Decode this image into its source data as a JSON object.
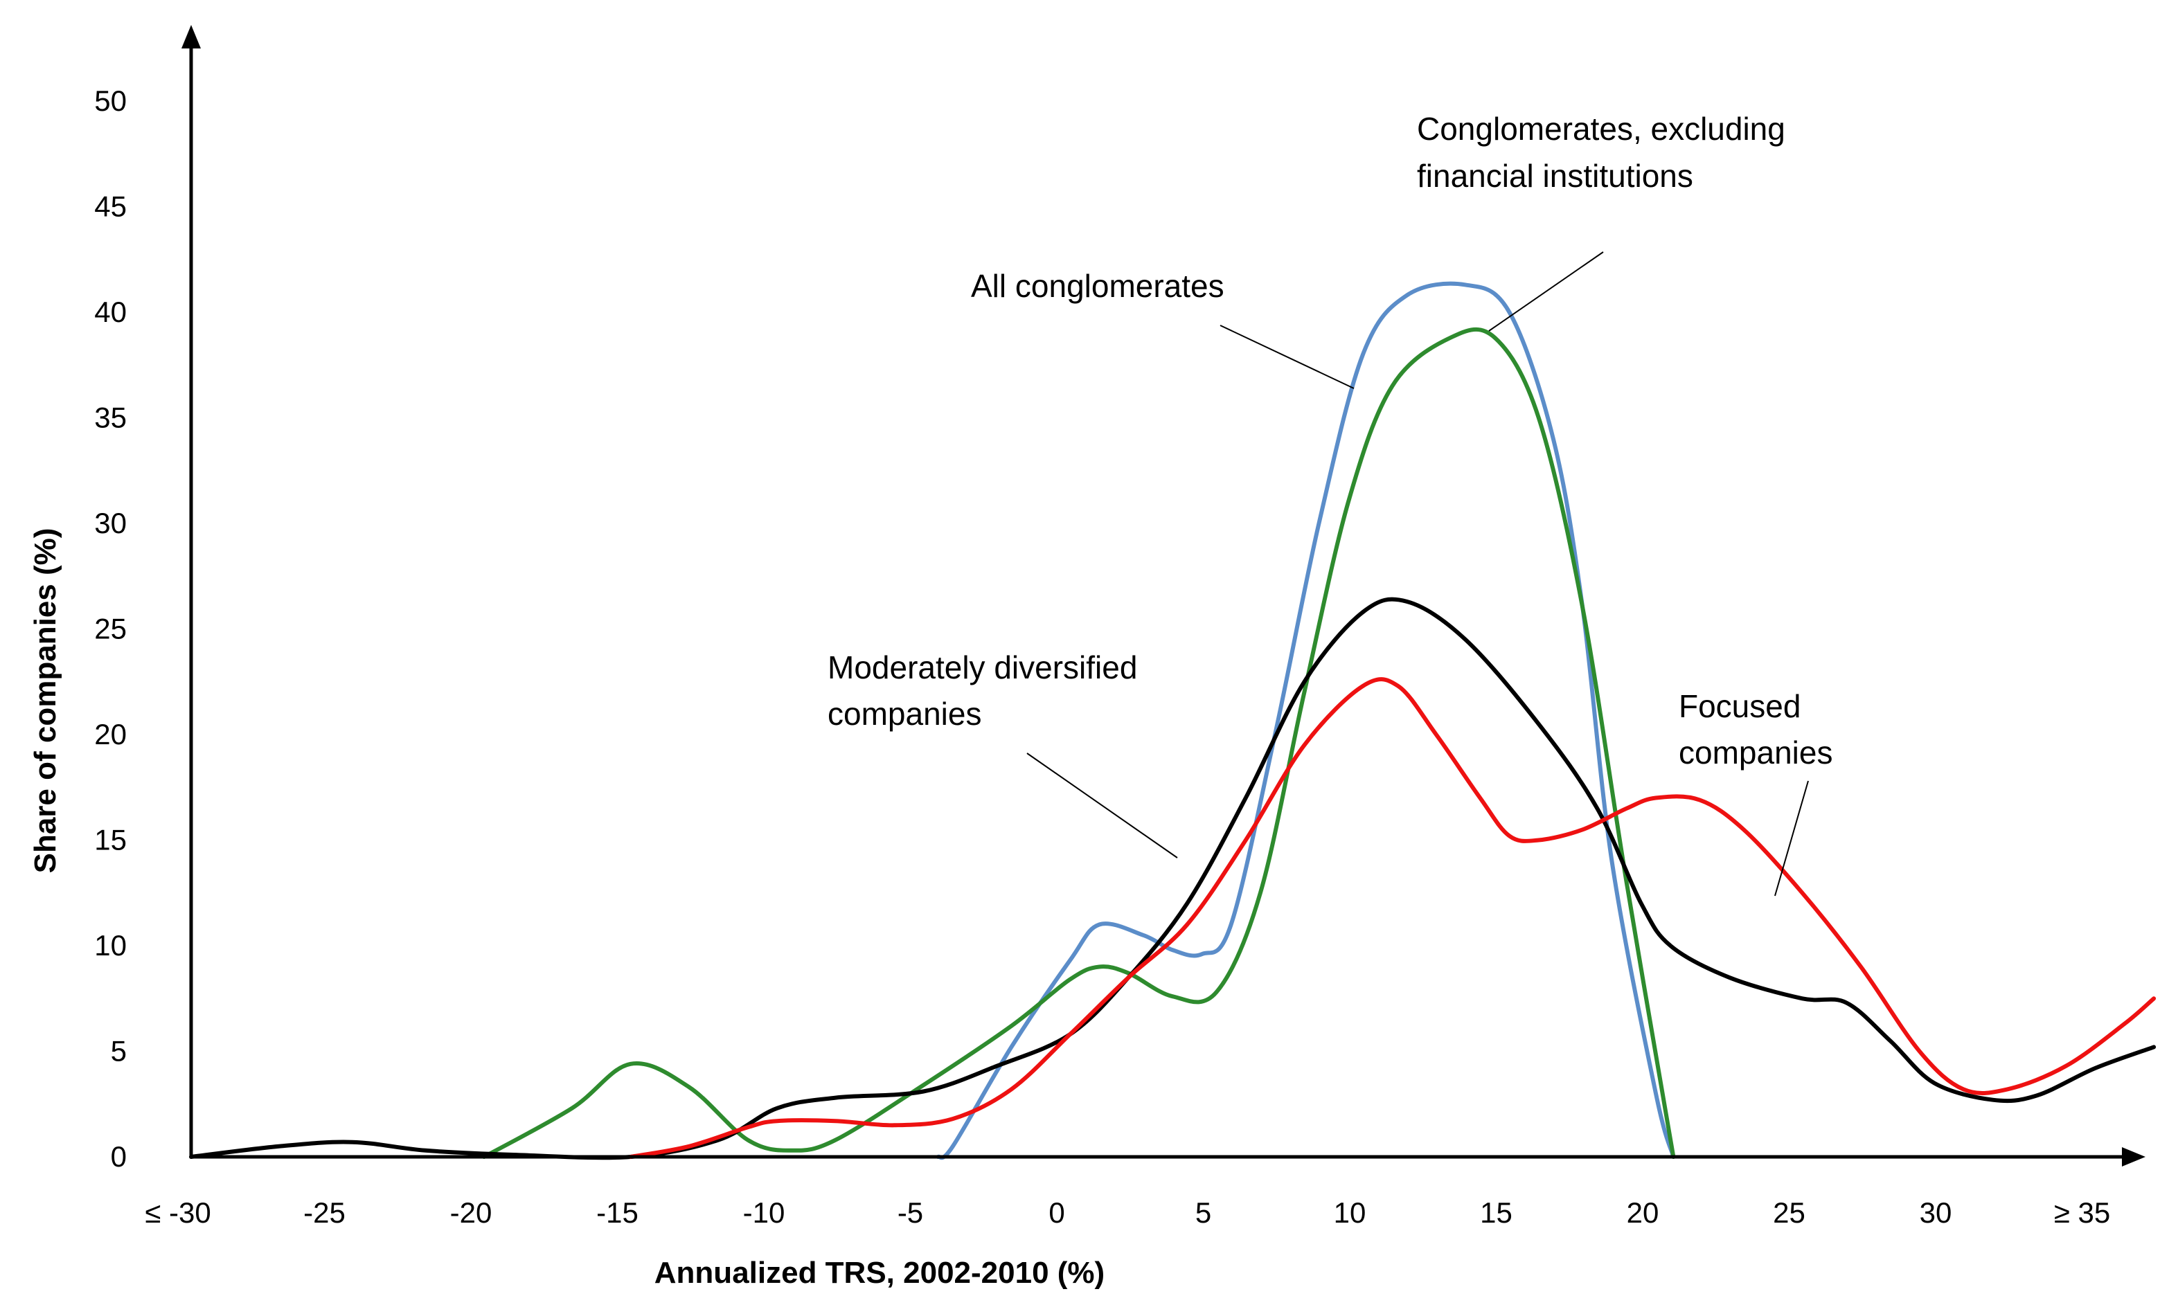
{
  "chart_data": {
    "type": "line",
    "title": "",
    "xlabel": "Annualized TRS, 2002-2010 (%)",
    "ylabel": "Share of companies (%)",
    "xlim": [
      -30,
      37.5
    ],
    "ylim": [
      0,
      50
    ],
    "x_ticks": [
      {
        "value": -30,
        "label": "≤ -30"
      },
      {
        "value": -25,
        "label": "-25"
      },
      {
        "value": -20,
        "label": "-20"
      },
      {
        "value": -15,
        "label": "-15"
      },
      {
        "value": -10,
        "label": "-10"
      },
      {
        "value": -5,
        "label": "-5"
      },
      {
        "value": 0,
        "label": "0"
      },
      {
        "value": 5,
        "label": "5"
      },
      {
        "value": 10,
        "label": "10"
      },
      {
        "value": 15,
        "label": "15"
      },
      {
        "value": 20,
        "label": "20"
      },
      {
        "value": 25,
        "label": "25"
      },
      {
        "value": 30,
        "label": "30"
      },
      {
        "value": 35,
        "label": "≥ 35"
      }
    ],
    "y_ticks": [
      0,
      5,
      10,
      15,
      20,
      25,
      30,
      35,
      40,
      45,
      50
    ],
    "grid": false,
    "legend": "none (series labeled by annotations)",
    "series": [
      {
        "name": "Conglomerates, excluding financial institutions",
        "color": "#5b8dc9",
        "points": [
          [
            -4.5,
            0
          ],
          [
            -4,
            0.5
          ],
          [
            -2,
            5.2
          ],
          [
            0,
            9.3
          ],
          [
            1,
            11
          ],
          [
            2.5,
            10.5
          ],
          [
            3.5,
            9.8
          ],
          [
            4.5,
            9.6
          ],
          [
            5.5,
            11
          ],
          [
            7,
            20
          ],
          [
            8.5,
            30
          ],
          [
            10,
            38
          ],
          [
            11.5,
            40.8
          ],
          [
            13.5,
            41.3
          ],
          [
            15,
            40
          ],
          [
            16.5,
            34
          ],
          [
            17.5,
            26
          ],
          [
            18.5,
            14
          ],
          [
            20,
            3
          ],
          [
            20.6,
            0
          ]
        ]
      },
      {
        "name": "All conglomerates",
        "color": "#2e8b2e",
        "points": [
          [
            -20,
            0
          ],
          [
            -17,
            2.3
          ],
          [
            -15,
            4.4
          ],
          [
            -13,
            3.3
          ],
          [
            -11,
            0.8
          ],
          [
            -9.5,
            0.3
          ],
          [
            -8,
            0.8
          ],
          [
            -5,
            3.4
          ],
          [
            -2,
            6.2
          ],
          [
            0,
            8.4
          ],
          [
            1,
            9
          ],
          [
            2,
            8.7
          ],
          [
            3.5,
            7.6
          ],
          [
            5,
            7.8
          ],
          [
            6.5,
            12.5
          ],
          [
            8,
            22
          ],
          [
            9.5,
            31
          ],
          [
            11,
            36.5
          ],
          [
            13,
            38.8
          ],
          [
            14.5,
            38.8
          ],
          [
            16,
            35
          ],
          [
            17.5,
            26
          ],
          [
            19,
            13
          ],
          [
            20.6,
            0
          ]
        ]
      },
      {
        "name": "Moderately diversified companies",
        "color": "#000000",
        "points": [
          [
            -30,
            0
          ],
          [
            -27,
            0.5
          ],
          [
            -24.5,
            0.7
          ],
          [
            -22,
            0.3
          ],
          [
            -19,
            0.1
          ],
          [
            -15,
            0
          ],
          [
            -12,
            0.8
          ],
          [
            -10,
            2.3
          ],
          [
            -8,
            2.8
          ],
          [
            -5,
            3.1
          ],
          [
            -2.5,
            4.3
          ],
          [
            0,
            5.8
          ],
          [
            2,
            8.5
          ],
          [
            4,
            12
          ],
          [
            6,
            17
          ],
          [
            8,
            22.5
          ],
          [
            10,
            25.8
          ],
          [
            11.5,
            26.3
          ],
          [
            13.5,
            24.5
          ],
          [
            16,
            20.5
          ],
          [
            18,
            16.5
          ],
          [
            19.5,
            12
          ],
          [
            20.5,
            10
          ],
          [
            22.5,
            8.5
          ],
          [
            25,
            7.5
          ],
          [
            26.5,
            7.3
          ],
          [
            28,
            5.5
          ],
          [
            29.5,
            3.5
          ],
          [
            31.5,
            2.7
          ],
          [
            33,
            2.9
          ],
          [
            35,
            4.2
          ],
          [
            37,
            5.2
          ]
        ]
      },
      {
        "name": "Focused companies",
        "color": "#ee1111",
        "points": [
          [
            -15,
            0
          ],
          [
            -13,
            0.5
          ],
          [
            -11,
            1.4
          ],
          [
            -10,
            1.7
          ],
          [
            -8,
            1.7
          ],
          [
            -6,
            1.5
          ],
          [
            -4,
            1.8
          ],
          [
            -2,
            3.2
          ],
          [
            0,
            5.8
          ],
          [
            2,
            8.5
          ],
          [
            4,
            11
          ],
          [
            6,
            15
          ],
          [
            8,
            19.5
          ],
          [
            10,
            22.3
          ],
          [
            11.2,
            22.3
          ],
          [
            12.5,
            20
          ],
          [
            14,
            17
          ],
          [
            15,
            15.2
          ],
          [
            16,
            15
          ],
          [
            17.5,
            15.5
          ],
          [
            19,
            16.5
          ],
          [
            20,
            17
          ],
          [
            21.5,
            16.9
          ],
          [
            23,
            15.5
          ],
          [
            25,
            12.5
          ],
          [
            27,
            9
          ],
          [
            29,
            5
          ],
          [
            30.5,
            3.2
          ],
          [
            32,
            3.2
          ],
          [
            34,
            4.3
          ],
          [
            36,
            6.3
          ],
          [
            37,
            7.5
          ]
        ]
      }
    ],
    "annotations": [
      {
        "lines": [
          "Conglomerates, excluding",
          "financial institutions"
        ],
        "series": "Conglomerates, excluding financial institutions"
      },
      {
        "lines": [
          "All conglomerates"
        ],
        "series": "All conglomerates"
      },
      {
        "lines": [
          "Moderately diversified",
          "companies"
        ],
        "series": "Moderately diversified companies"
      },
      {
        "lines": [
          "Focused",
          "companies"
        ],
        "series": "Focused companies"
      }
    ]
  }
}
